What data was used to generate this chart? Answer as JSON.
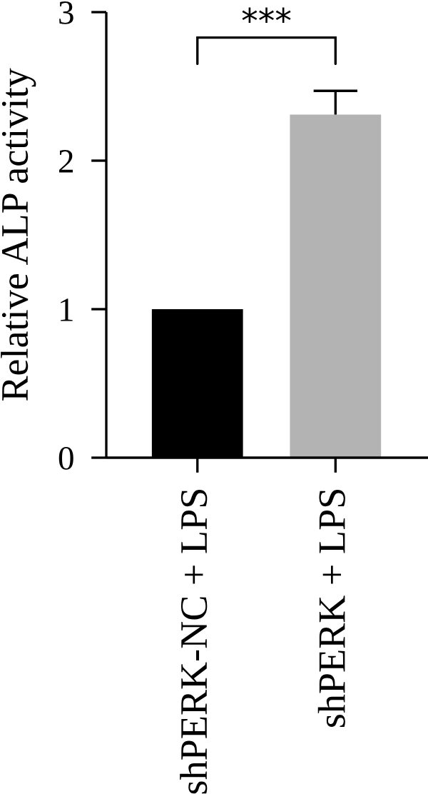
{
  "chart_data": {
    "type": "bar",
    "ylabel": "Relative ALP activity",
    "categories": [
      "shPERK-NC + LPS",
      "shPERK + LPS"
    ],
    "values": [
      1.0,
      2.31
    ],
    "colors": [
      "#000000",
      "#b3b3b3"
    ],
    "errors": [
      null,
      [
        2.31,
        2.47
      ]
    ],
    "ylim": [
      0,
      3
    ],
    "yticks": [
      0,
      1,
      2,
      3
    ],
    "grid": false,
    "annotations": [
      "***"
    ]
  }
}
